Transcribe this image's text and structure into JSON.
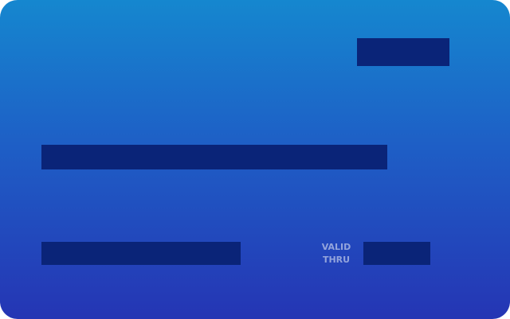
{
  "card": {
    "valid_thru": {
      "line1": "VALID",
      "line2": "THRU"
    }
  },
  "colors": {
    "gradient_top": "#1587cf",
    "gradient_mid": "#1e5fc6",
    "gradient_bottom": "#2535b4",
    "redaction": "#0a2478",
    "label_text": "#93a4dc"
  }
}
